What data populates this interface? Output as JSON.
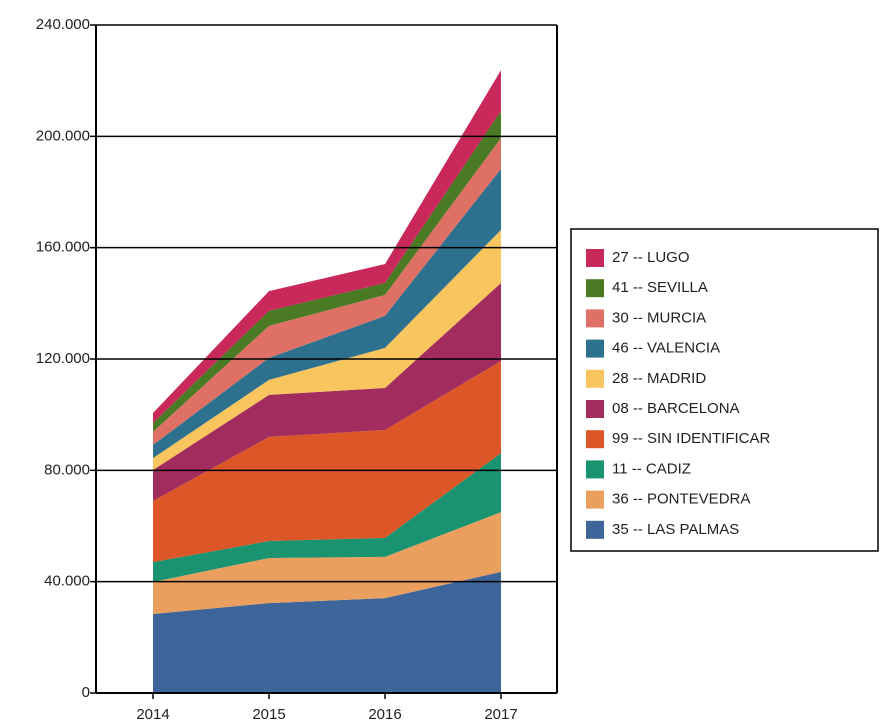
{
  "chart_data": {
    "type": "stacked_area",
    "categories": [
      "2014",
      "2015",
      "2016",
      "2017"
    ],
    "series": [
      {
        "name": "35 -- LAS PALMAS",
        "color": "#3e6599",
        "values": [
          28400,
          32300,
          34100,
          43500
        ]
      },
      {
        "name": "36 -- PONTEVEDRA",
        "color": "#eb9f5e",
        "values": [
          11500,
          16200,
          14800,
          21500
        ]
      },
      {
        "name": "11 -- CADIZ",
        "color": "#1a9470",
        "values": [
          7100,
          6100,
          6800,
          21200
        ]
      },
      {
        "name": "99 -- SIN IDENTIFICAR",
        "color": "#dc5628",
        "values": [
          22000,
          37400,
          38800,
          33100
        ]
      },
      {
        "name": "08 -- BARCELONA",
        "color": "#a22c5e",
        "values": [
          11100,
          15100,
          15100,
          28000
        ]
      },
      {
        "name": "28 -- MADRID",
        "color": "#f9c55e",
        "values": [
          4300,
          5400,
          14400,
          19100
        ]
      },
      {
        "name": "46 -- VALENCIA",
        "color": "#2e718e",
        "values": [
          4700,
          7900,
          11500,
          21900
        ]
      },
      {
        "name": "30 -- MURCIA",
        "color": "#de7065",
        "values": [
          4700,
          11500,
          7500,
          11100
        ]
      },
      {
        "name": "41 -- SEVILLA",
        "color": "#4a7a23",
        "values": [
          3200,
          5400,
          4300,
          9700
        ]
      },
      {
        "name": "27 -- LUGO",
        "color": "#c8285a",
        "values": [
          3600,
          7100,
          6800,
          14700
        ]
      }
    ],
    "ylim": [
      0,
      240000
    ],
    "yticks": [
      0,
      {
        "value": 40000,
        "label": "40.000"
      },
      {
        "value": 80000,
        "label": "80.000"
      },
      {
        "value": 120000,
        "label": "120.000"
      },
      {
        "value": 160000,
        "label": "160.000"
      },
      {
        "value": 200000,
        "label": "200.000"
      },
      {
        "value": 240000,
        "label": "240.000"
      }
    ],
    "grid": true,
    "legend": "right"
  }
}
